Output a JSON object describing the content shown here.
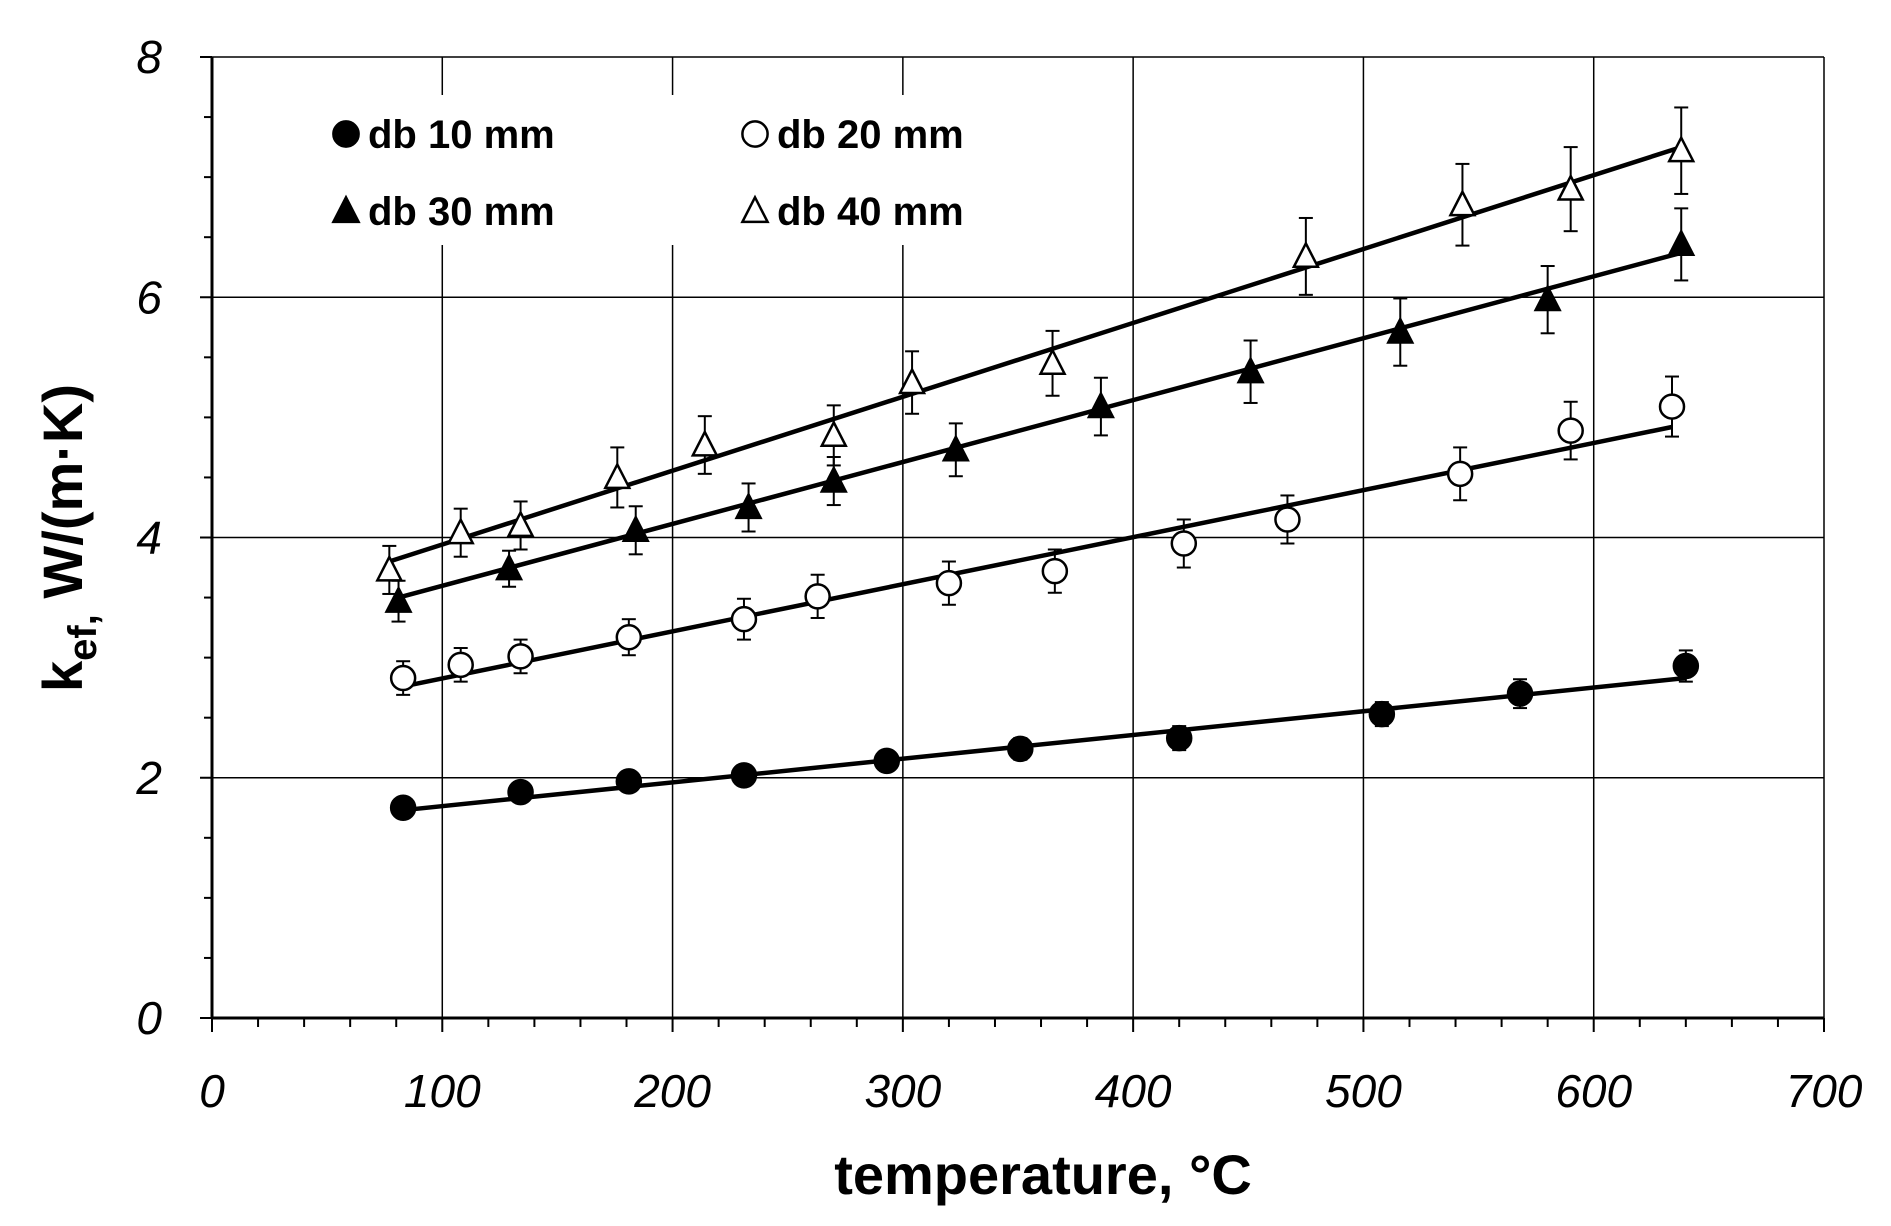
{
  "chart_data": {
    "type": "scatter",
    "title": "",
    "xlabel": "temperature, °C",
    "ylabel_main": "k",
    "ylabel_sub": "ef,",
    "ylabel_unit": " W/(m·K)",
    "xlim": [
      0,
      700
    ],
    "ylim": [
      0,
      8
    ],
    "x_ticks": [
      "0",
      "100",
      "200",
      "300",
      "400",
      "500",
      "600",
      "700"
    ],
    "y_ticks": [
      "0",
      "2",
      "4",
      "6",
      "8"
    ],
    "grid": true,
    "legend_position": "top-left",
    "series": [
      {
        "name": "db 10 mm",
        "marker": "circle-filled",
        "x": [
          83,
          134,
          181,
          231,
          293,
          351,
          420,
          508,
          568,
          640
        ],
        "y": [
          1.75,
          1.88,
          1.97,
          2.02,
          2.14,
          2.24,
          2.33,
          2.53,
          2.7,
          2.93
        ],
        "err": [
          0.05,
          0.06,
          0.06,
          0.07,
          0.08,
          0.09,
          0.1,
          0.1,
          0.12,
          0.13
        ],
        "fit": {
          "x": [
            83,
            640
          ],
          "y": [
            1.73,
            2.83
          ]
        }
      },
      {
        "name": "db 20 mm",
        "marker": "circle-open",
        "x": [
          83,
          108,
          134,
          181,
          231,
          263,
          320,
          366,
          422,
          467,
          542,
          590,
          634
        ],
        "y": [
          2.83,
          2.94,
          3.01,
          3.17,
          3.32,
          3.51,
          3.62,
          3.72,
          3.95,
          4.15,
          4.53,
          4.89,
          5.09
        ],
        "err": [
          0.14,
          0.14,
          0.14,
          0.15,
          0.17,
          0.18,
          0.18,
          0.18,
          0.2,
          0.2,
          0.22,
          0.24,
          0.25
        ],
        "fit": {
          "x": [
            83,
            634
          ],
          "y": [
            2.76,
            4.92
          ]
        }
      },
      {
        "name": "db 30 mm",
        "marker": "triangle-filled",
        "x": [
          81,
          129,
          184,
          233,
          270,
          323,
          386,
          451,
          516,
          580,
          638
        ],
        "y": [
          3.47,
          3.74,
          4.06,
          4.25,
          4.47,
          4.73,
          5.09,
          5.38,
          5.71,
          5.98,
          6.44
        ],
        "err": [
          0.17,
          0.15,
          0.2,
          0.2,
          0.2,
          0.22,
          0.24,
          0.26,
          0.28,
          0.28,
          0.3
        ],
        "fit": {
          "x": [
            81,
            638
          ],
          "y": [
            3.5,
            6.37
          ]
        }
      },
      {
        "name": "db 40 mm",
        "marker": "triangle-open",
        "x": [
          77,
          108,
          134,
          176,
          214,
          270,
          304,
          365,
          475,
          543,
          590,
          638
        ],
        "y": [
          3.73,
          4.04,
          4.1,
          4.5,
          4.77,
          4.85,
          5.29,
          5.45,
          6.34,
          6.77,
          6.9,
          7.22
        ],
        "err": [
          0.2,
          0.2,
          0.2,
          0.25,
          0.24,
          0.25,
          0.26,
          0.27,
          0.32,
          0.34,
          0.35,
          0.36
        ],
        "fit": {
          "x": [
            77,
            638
          ],
          "y": [
            3.8,
            7.25
          ]
        }
      }
    ]
  }
}
